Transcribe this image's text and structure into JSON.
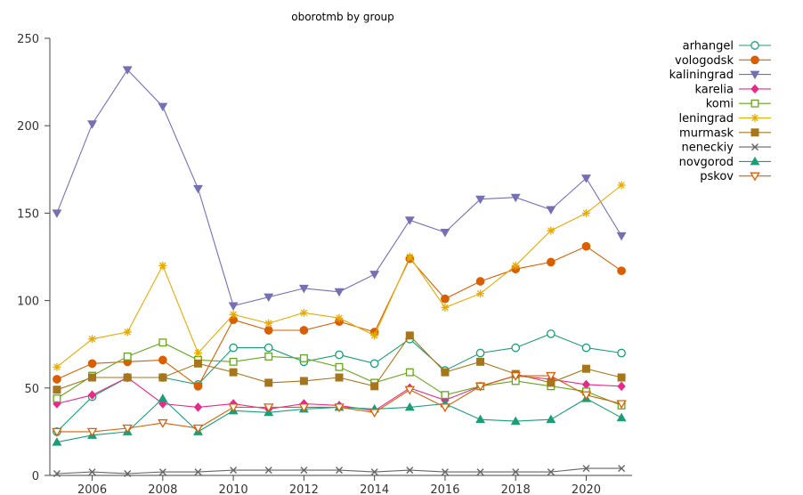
{
  "chart_data": {
    "type": "line",
    "title": "oborotmb by group",
    "xlabel": "",
    "ylabel": "",
    "xlim": [
      2004.8,
      2021.3
    ],
    "ylim": [
      0,
      250
    ],
    "x_ticks": [
      2006,
      2008,
      2010,
      2012,
      2014,
      2016,
      2018,
      2020
    ],
    "y_ticks": [
      0,
      50,
      100,
      150,
      200,
      250
    ],
    "grid": false,
    "legend_position": "right",
    "x": [
      2005,
      2006,
      2007,
      2008,
      2009,
      2010,
      2011,
      2012,
      2013,
      2014,
      2015,
      2016,
      2017,
      2018,
      2019,
      2020,
      2021
    ],
    "series": [
      {
        "name": "arhangel",
        "color": "#1a9e77",
        "marker": "circle-open",
        "values": [
          25,
          45,
          56,
          56,
          52,
          73,
          73,
          65,
          69,
          64,
          78,
          60,
          70,
          73,
          81,
          73,
          70
        ]
      },
      {
        "name": "vologodsk",
        "color": "#d95f02",
        "marker": "circle",
        "values": [
          55,
          64,
          65,
          66,
          51,
          89,
          83,
          83,
          88,
          82,
          124,
          101,
          111,
          118,
          122,
          131,
          117
        ]
      },
      {
        "name": "kaliningrad",
        "color": "#7570b3",
        "marker": "triangle-down",
        "values": [
          150,
          201,
          232,
          211,
          164,
          97,
          102,
          107,
          105,
          115,
          146,
          139,
          158,
          159,
          152,
          170,
          137
        ]
      },
      {
        "name": "karelia",
        "color": "#e7298a",
        "marker": "diamond",
        "values": [
          41,
          46,
          56,
          41,
          39,
          41,
          38,
          41,
          40,
          37,
          50,
          43,
          51,
          57,
          55,
          52,
          51
        ]
      },
      {
        "name": "komi",
        "color": "#66a61e",
        "marker": "square-open",
        "values": [
          44,
          57,
          68,
          76,
          66,
          65,
          68,
          67,
          62,
          53,
          59,
          46,
          51,
          54,
          51,
          48,
          40
        ]
      },
      {
        "name": "leningrad",
        "color": "#e6ab02",
        "marker": "star",
        "values": [
          62,
          78,
          82,
          120,
          70,
          92,
          87,
          93,
          90,
          80,
          125,
          96,
          104,
          120,
          140,
          150,
          166
        ]
      },
      {
        "name": "murmask",
        "color": "#a6761d",
        "marker": "square",
        "values": [
          49,
          56,
          56,
          56,
          64,
          59,
          53,
          54,
          56,
          51,
          80,
          59,
          65,
          58,
          53,
          61,
          56
        ]
      },
      {
        "name": "neneckiy",
        "color": "#666666",
        "marker": "x",
        "values": [
          1,
          2,
          1,
          2,
          2,
          3,
          3,
          3,
          3,
          2,
          3,
          2,
          2,
          2,
          2,
          4,
          4
        ]
      },
      {
        "name": "novgorod",
        "color": "#1a9e77",
        "marker": "triangle",
        "values": [
          19,
          23,
          25,
          44,
          25,
          37,
          36,
          38,
          39,
          38,
          39,
          41,
          32,
          31,
          32,
          44,
          33
        ]
      },
      {
        "name": "pskov",
        "color": "#d95f02",
        "marker": "triangle-down-open",
        "values": [
          25,
          25,
          27,
          30,
          27,
          39,
          39,
          39,
          39,
          36,
          49,
          39,
          51,
          57,
          57,
          46,
          41
        ]
      }
    ]
  }
}
